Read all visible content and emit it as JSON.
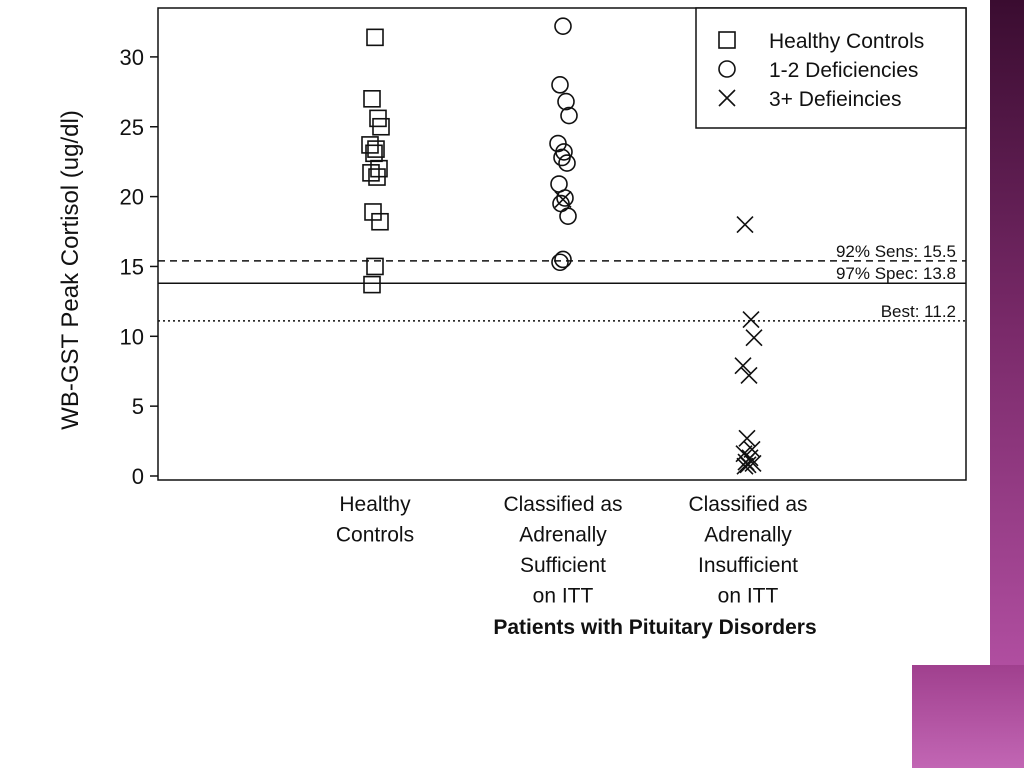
{
  "colors": {
    "accent_dark": "#3a0c30",
    "accent_light": "#c266b4",
    "ink": "#111111"
  },
  "chart_data": {
    "type": "scatter",
    "ylabel": "WB-GST Peak Cortisol (ug/dl)",
    "xlabel": "Patients with Pituitary Disorders",
    "ylim": [
      0,
      33
    ],
    "yticks": [
      0,
      5,
      10,
      15,
      20,
      25,
      30
    ],
    "grid": false,
    "legend_position": "top-right",
    "categories": [
      [
        "Healthy",
        "Controls"
      ],
      [
        "Classified as",
        "Adrenally",
        "Sufficient",
        "on ITT"
      ],
      [
        "Classified as",
        "Adrenally",
        "Insufficient",
        "on ITT"
      ]
    ],
    "series": [
      {
        "name": "Healthy Controls",
        "marker": "square",
        "points": [
          {
            "x": 1,
            "y": 31.4
          },
          {
            "x": 1,
            "y": 27.0
          },
          {
            "x": 1,
            "y": 25.6
          },
          {
            "x": 1,
            "y": 25.0
          },
          {
            "x": 1,
            "y": 23.7
          },
          {
            "x": 1,
            "y": 23.4
          },
          {
            "x": 1,
            "y": 23.1
          },
          {
            "x": 1,
            "y": 22.0
          },
          {
            "x": 1,
            "y": 21.7
          },
          {
            "x": 1,
            "y": 21.4
          },
          {
            "x": 1,
            "y": 18.9
          },
          {
            "x": 1,
            "y": 18.2
          },
          {
            "x": 1,
            "y": 15.0
          },
          {
            "x": 1,
            "y": 13.7
          }
        ]
      },
      {
        "name": "1-2 Deficiencies",
        "marker": "circle",
        "points": [
          {
            "x": 2,
            "y": 32.2
          },
          {
            "x": 2,
            "y": 28.0
          },
          {
            "x": 2,
            "y": 26.8
          },
          {
            "x": 2,
            "y": 25.8
          },
          {
            "x": 2,
            "y": 23.8
          },
          {
            "x": 2,
            "y": 23.2
          },
          {
            "x": 2,
            "y": 22.8
          },
          {
            "x": 2,
            "y": 22.4
          },
          {
            "x": 2,
            "y": 20.9
          },
          {
            "x": 2,
            "y": 19.9
          },
          {
            "x": 2,
            "y": 19.5
          },
          {
            "x": 2,
            "y": 18.6
          },
          {
            "x": 2,
            "y": 15.5
          },
          {
            "x": 2,
            "y": 15.3
          }
        ]
      },
      {
        "name": "3+ Defieincies",
        "marker": "x",
        "points": [
          {
            "x": 2,
            "y": 19.8
          },
          {
            "x": 3,
            "y": 18.0
          },
          {
            "x": 3,
            "y": 11.2
          },
          {
            "x": 3,
            "y": 9.9
          },
          {
            "x": 3,
            "y": 7.9
          },
          {
            "x": 3,
            "y": 7.2
          },
          {
            "x": 3,
            "y": 2.7
          },
          {
            "x": 3,
            "y": 1.9
          },
          {
            "x": 3,
            "y": 1.6
          },
          {
            "x": 3,
            "y": 1.3
          },
          {
            "x": 3,
            "y": 1.0
          },
          {
            "x": 3,
            "y": 0.9
          },
          {
            "x": 3,
            "y": 0.8
          },
          {
            "x": 3,
            "y": 0.7
          }
        ]
      }
    ],
    "reference_lines": [
      {
        "label": "92% Sens: 15.5",
        "y": 15.4,
        "style": "dashed"
      },
      {
        "label": "97% Spec: 13.8",
        "y": 13.8,
        "style": "solid"
      },
      {
        "label": "Best: 11.2",
        "y": 11.1,
        "style": "dotted"
      }
    ]
  }
}
